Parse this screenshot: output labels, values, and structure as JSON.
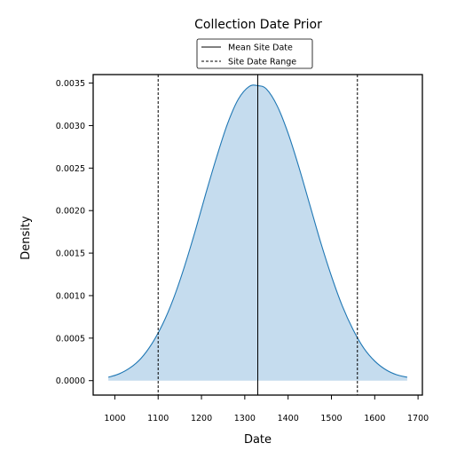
{
  "chart_data": {
    "type": "area",
    "title": "Collection Date Prior",
    "xlabel": "Date",
    "ylabel": "Density",
    "xlim": [
      950,
      1710
    ],
    "ylim": [
      -0.00017,
      0.0036
    ],
    "xticks": [
      1000,
      1100,
      1200,
      1300,
      1400,
      1500,
      1600,
      1700
    ],
    "xtick_labels": [
      "1000",
      "1100",
      "1200",
      "1300",
      "1400",
      "1500",
      "1600",
      "1700"
    ],
    "yticks": [
      0.0,
      0.0005,
      0.001,
      0.0015,
      0.002,
      0.0025,
      0.003,
      0.0035
    ],
    "ytick_labels": [
      "0.0000",
      "0.0005",
      "0.0010",
      "0.0015",
      "0.0020",
      "0.0025",
      "0.0030",
      "0.0035"
    ],
    "grid": false,
    "legend_position": "top-center (above plot)",
    "legend": [
      {
        "label": "Mean Site Date",
        "style": "solid"
      },
      {
        "label": "Site Date Range",
        "style": "dashed"
      }
    ],
    "series": [
      {
        "x": [
          985,
          1010,
          1035,
          1060,
          1085,
          1110,
          1135,
          1160,
          1185,
          1210,
          1235,
          1260,
          1285,
          1310,
          1330,
          1350,
          1375,
          1400,
          1425,
          1450,
          1475,
          1500,
          1525,
          1550,
          1575,
          1600,
          1625,
          1650,
          1675
        ],
        "y": [
          4e-05,
          8e-05,
          0.00015,
          0.00026,
          0.00043,
          0.00066,
          0.00096,
          0.00133,
          0.00175,
          0.0022,
          0.00263,
          0.00302,
          0.00331,
          0.00346,
          0.00347,
          0.00343,
          0.00323,
          0.00291,
          0.00251,
          0.00207,
          0.00163,
          0.00123,
          0.00088,
          0.0006,
          0.00038,
          0.00023,
          0.00013,
          7e-05,
          4e-05
        ],
        "fill": true
      }
    ],
    "vlines": [
      {
        "legend": "Mean Site Date",
        "x": 1330
      },
      {
        "legend": "Site Date Range",
        "x": 1100
      },
      {
        "legend": "Site Date Range",
        "x": 1560
      }
    ],
    "colors": {
      "line": "#1f77b4",
      "fill": "#c5dcee",
      "vline": "#000000"
    }
  }
}
